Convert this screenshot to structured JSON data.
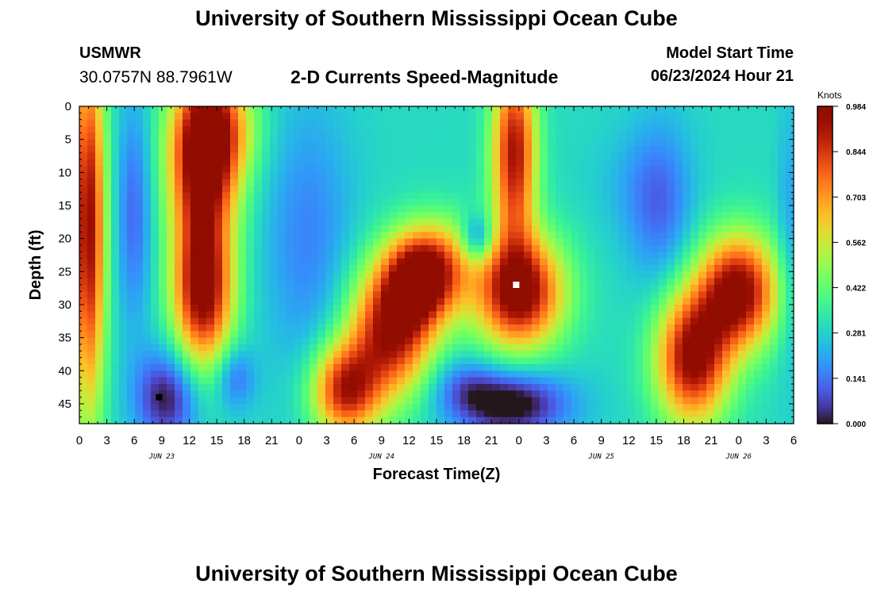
{
  "header": {
    "title": "University of Southern Mississippi Ocean Cube",
    "station": "USMWR",
    "coords": "30.0757N  88.7961W",
    "plot_title": "2-D Currents Speed-Magnitude",
    "start_label": "Model Start Time",
    "start_value": "06/23/2024 Hour 21"
  },
  "footer": {
    "title": "University of Southern Mississippi Ocean Cube"
  },
  "chart_data": {
    "type": "heatmap",
    "title": "2-D Currents Speed-Magnitude",
    "xlabel": "Forecast Time(Z)",
    "ylabel": "Depth (ft)",
    "xlim": [
      0,
      78
    ],
    "ylim": [
      48,
      0
    ],
    "y_inverted": true,
    "x_tick_labels": [
      "0",
      "3",
      "6",
      "9",
      "12",
      "15",
      "18",
      "21",
      "0",
      "3",
      "6",
      "9",
      "12",
      "15",
      "18",
      "21",
      "0",
      "3",
      "6",
      "9",
      "12",
      "15",
      "18",
      "21",
      "0",
      "3",
      "6"
    ],
    "date_labels": [
      {
        "label": "JUN 23",
        "x": 9
      },
      {
        "label": "JUN 24",
        "x": 33
      },
      {
        "label": "JUN 25",
        "x": 57
      },
      {
        "label": "JUN 26",
        "x": 72
      }
    ],
    "y_ticks": [
      0,
      5,
      10,
      15,
      20,
      25,
      30,
      35,
      40,
      45
    ],
    "colorbar": {
      "unit": "Knots",
      "min": 0.0,
      "max": 0.984,
      "tick_labels": [
        "0.000",
        "0.141",
        "0.281",
        "0.422",
        "0.562",
        "0.703",
        "0.844",
        "0.984"
      ],
      "colormap": "turbo"
    },
    "markers": [
      {
        "name": "min",
        "x": 8.7,
        "depth": 44,
        "color": "#000000"
      },
      {
        "name": "max",
        "x": 47.7,
        "depth": 27,
        "color": "#ffffff"
      }
    ],
    "speed_field": {
      "background": 0.3,
      "features": [
        {
          "x": 1,
          "depth": 18,
          "sx": 1.3,
          "sy": 20,
          "amp": 0.65
        },
        {
          "x": 13.5,
          "depth": 8,
          "sx": 2.6,
          "sy": 9,
          "amp": 0.7
        },
        {
          "x": 15.5,
          "depth": 3,
          "sx": 2.8,
          "sy": 6,
          "amp": 0.3
        },
        {
          "x": 13.5,
          "depth": 28,
          "sx": 2.3,
          "sy": 8,
          "amp": 0.68
        },
        {
          "x": 6,
          "depth": 16,
          "sx": 1.4,
          "sy": 12,
          "amp": -0.18
        },
        {
          "x": 9.5,
          "depth": 44,
          "sx": 2.4,
          "sy": 5,
          "amp": -0.3
        },
        {
          "x": 17,
          "depth": 41,
          "sx": 1.5,
          "sy": 3.5,
          "amp": -0.18
        },
        {
          "x": 25,
          "depth": 20,
          "sx": 3.5,
          "sy": 15,
          "amp": -0.14
        },
        {
          "x": 29,
          "depth": 43,
          "sx": 2.6,
          "sy": 5,
          "amp": 0.58
        },
        {
          "x": 34,
          "depth": 34,
          "sx": 3.2,
          "sy": 7,
          "amp": 0.62
        },
        {
          "x": 37,
          "depth": 26,
          "sx": 2.6,
          "sy": 5,
          "amp": 0.6
        },
        {
          "x": 40,
          "depth": 24,
          "sx": 2.5,
          "sy": 5,
          "amp": 0.25
        },
        {
          "x": 43.5,
          "depth": 20,
          "sx": 1.2,
          "sy": 2.5,
          "amp": -0.25
        },
        {
          "x": 47.5,
          "depth": 7,
          "sx": 1.7,
          "sy": 10,
          "amp": 0.62
        },
        {
          "x": 48,
          "depth": 28,
          "sx": 3.4,
          "sy": 6,
          "amp": 0.7
        },
        {
          "x": 47,
          "depth": 45,
          "sx": 4.5,
          "sy": 3.5,
          "amp": -0.35
        },
        {
          "x": 42,
          "depth": 42,
          "sx": 2.5,
          "sy": 3,
          "amp": -0.12
        },
        {
          "x": 60,
          "depth": 12,
          "sx": 3,
          "sy": 6,
          "amp": -0.05
        },
        {
          "x": 63.5,
          "depth": 15,
          "sx": 2.5,
          "sy": 9,
          "amp": -0.17
        },
        {
          "x": 67,
          "depth": 38,
          "sx": 2.8,
          "sy": 7,
          "amp": 0.67
        },
        {
          "x": 72,
          "depth": 28,
          "sx": 3,
          "sy": 6,
          "amp": 0.68
        },
        {
          "x": 77.5,
          "depth": 20,
          "sx": 0.9,
          "sy": 14,
          "amp": -0.1
        }
      ]
    }
  }
}
